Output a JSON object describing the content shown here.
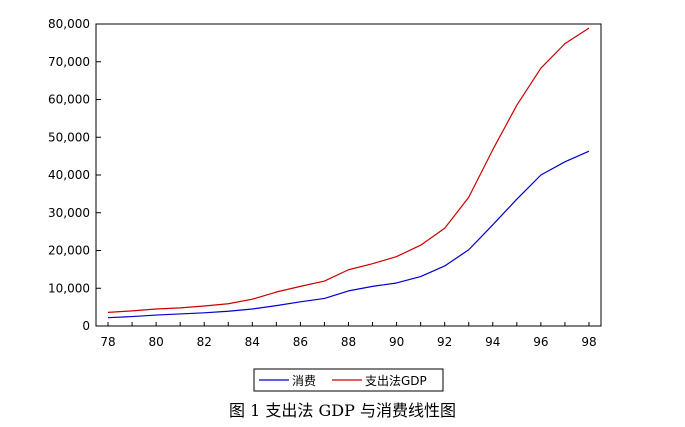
{
  "chart_data": {
    "type": "line",
    "x": [
      78,
      79,
      80,
      81,
      82,
      83,
      84,
      85,
      86,
      87,
      88,
      89,
      90,
      91,
      92,
      93,
      94,
      95,
      96,
      97,
      98
    ],
    "xticks": [
      "78",
      "80",
      "82",
      "84",
      "86",
      "88",
      "90",
      "92",
      "94",
      "96",
      "98"
    ],
    "yticks": [
      "0",
      "10,000",
      "20,000",
      "30,000",
      "40,000",
      "50,000",
      "60,000",
      "70,000",
      "80,000"
    ],
    "xlim": [
      77.5,
      98.5
    ],
    "ylim": [
      0,
      80000
    ],
    "grid": false,
    "legend": "bottom",
    "series": [
      {
        "name": "消费",
        "color": "#0000cc",
        "values": [
          2200,
          2500,
          2900,
          3200,
          3500,
          3900,
          4500,
          5400,
          6400,
          7300,
          9300,
          10500,
          11400,
          13100,
          15900,
          20200,
          26800,
          33600,
          40000,
          43500,
          46300
        ]
      },
      {
        "name": "支出法GDP",
        "color": "#cc0000",
        "values": [
          3600,
          4000,
          4500,
          4800,
          5300,
          5900,
          7100,
          9000,
          10500,
          11900,
          14900,
          16500,
          18400,
          21400,
          25900,
          34100,
          46700,
          58500,
          68300,
          74800,
          78900
        ]
      }
    ]
  },
  "caption": "图 1 支出法 GDP 与消费线性图"
}
